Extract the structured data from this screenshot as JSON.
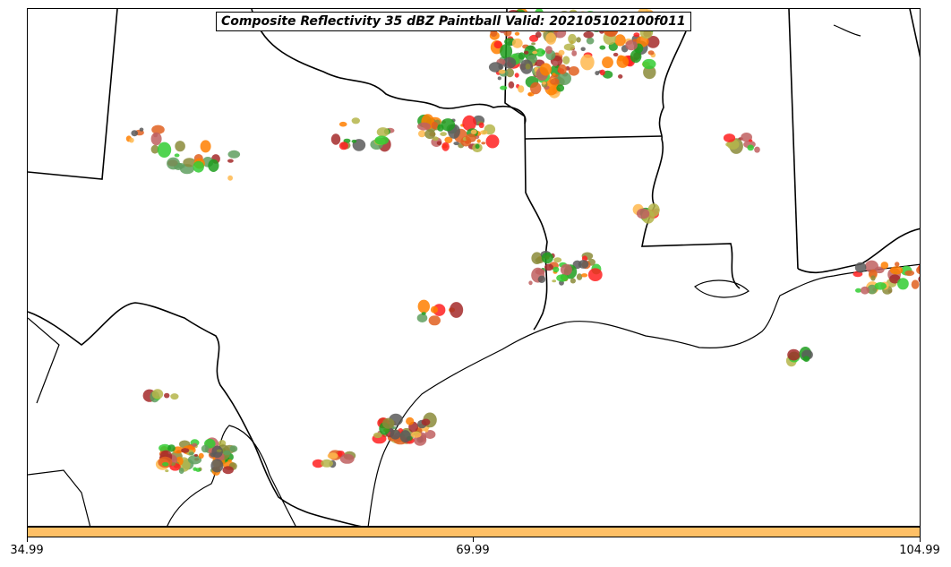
{
  "title": "Composite Reflectivity 35 dBZ Paintball Valid: 202105102100f011",
  "colorbar": {
    "color": "#ffc066",
    "ticks": [
      "34.99",
      "69.99",
      "104.99"
    ]
  },
  "palette": [
    "#ff2020",
    "#ff7f00",
    "#ffb84d",
    "#33cc33",
    "#1e9e1e",
    "#a52a2a",
    "#c06060",
    "#8b8b3a",
    "#b5b54a",
    "#5a5a5a",
    "#5f9f5f",
    "#e06020"
  ],
  "icons": [
    "state-border",
    "coastline"
  ]
}
